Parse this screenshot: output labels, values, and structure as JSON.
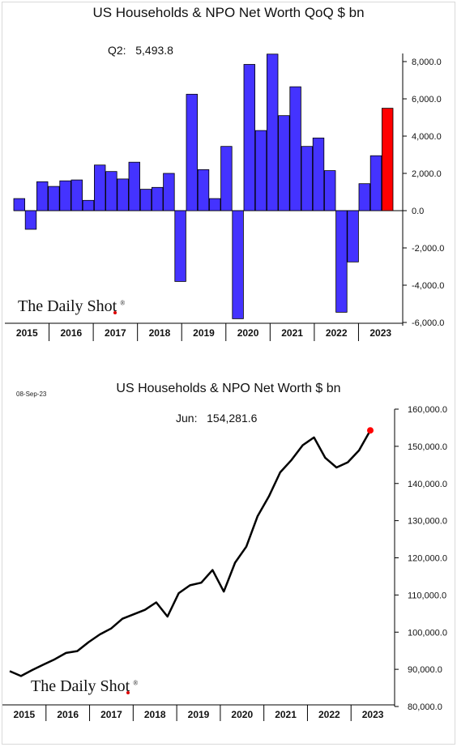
{
  "chart_data": [
    {
      "type": "bar",
      "title": "US Households & NPO Net Worth QoQ $ bn",
      "readout_label": "Q2:",
      "readout_value": "5,493.8",
      "brand": "The Daily Shot",
      "brand_mark": "®",
      "years": [
        "2015",
        "2016",
        "2017",
        "2018",
        "2019",
        "2020",
        "2021",
        "2022",
        "2023"
      ],
      "y_ticks": [
        "8,000.0",
        "6,000.0",
        "4,000.0",
        "2,000.0",
        "0.0",
        "-2,000.0",
        "-4,000.0",
        "-6,000.0"
      ],
      "y_tick_values": [
        8000,
        6000,
        4000,
        2000,
        0,
        -2000,
        -4000,
        -6000
      ],
      "ylim": [
        -6000,
        8500
      ],
      "values": [
        650,
        -1000,
        1550,
        1300,
        1600,
        1650,
        550,
        2450,
        2100,
        1700,
        2600,
        1150,
        1250,
        2000,
        -3800,
        6250,
        2200,
        650,
        3450,
        -5800,
        7850,
        4300,
        8400,
        5100,
        6650,
        3450,
        3900,
        2150,
        -5450,
        -2750,
        1450,
        2950,
        5493.8
      ],
      "bar_color": "#4433ff",
      "highlight_color": "#ff0000",
      "grid": false
    },
    {
      "type": "line",
      "title": "US Households & NPO Net Worth $ bn",
      "date_stamp": "08-Sep-23",
      "readout_label": "Jun:",
      "readout_value": "154,281.6",
      "brand": "The Daily Shot",
      "brand_mark": "®",
      "years": [
        "2015",
        "2016",
        "2017",
        "2018",
        "2019",
        "2020",
        "2021",
        "2022",
        "2023"
      ],
      "y_ticks": [
        "160,000.0",
        "150,000.0",
        "140,000.0",
        "130,000.0",
        "120,000.0",
        "110,000.0",
        "100,000.0",
        "90,000.0",
        "80,000.0"
      ],
      "y_tick_values": [
        160000,
        150000,
        140000,
        130000,
        120000,
        110000,
        100000,
        90000,
        80000
      ],
      "ylim": [
        80000,
        160000
      ],
      "values": [
        89500,
        88200,
        89800,
        91300,
        92700,
        94400,
        94900,
        97300,
        99400,
        101000,
        103600,
        104800,
        106000,
        108000,
        104200,
        110500,
        112600,
        113300,
        116700,
        110900,
        118700,
        123000,
        131200,
        136500,
        143000,
        146300,
        150300,
        152400,
        146900,
        144300,
        145700,
        148900,
        154281.6
      ],
      "line_color": "#000000",
      "marker_color": "#ff0000",
      "grid": false
    }
  ]
}
